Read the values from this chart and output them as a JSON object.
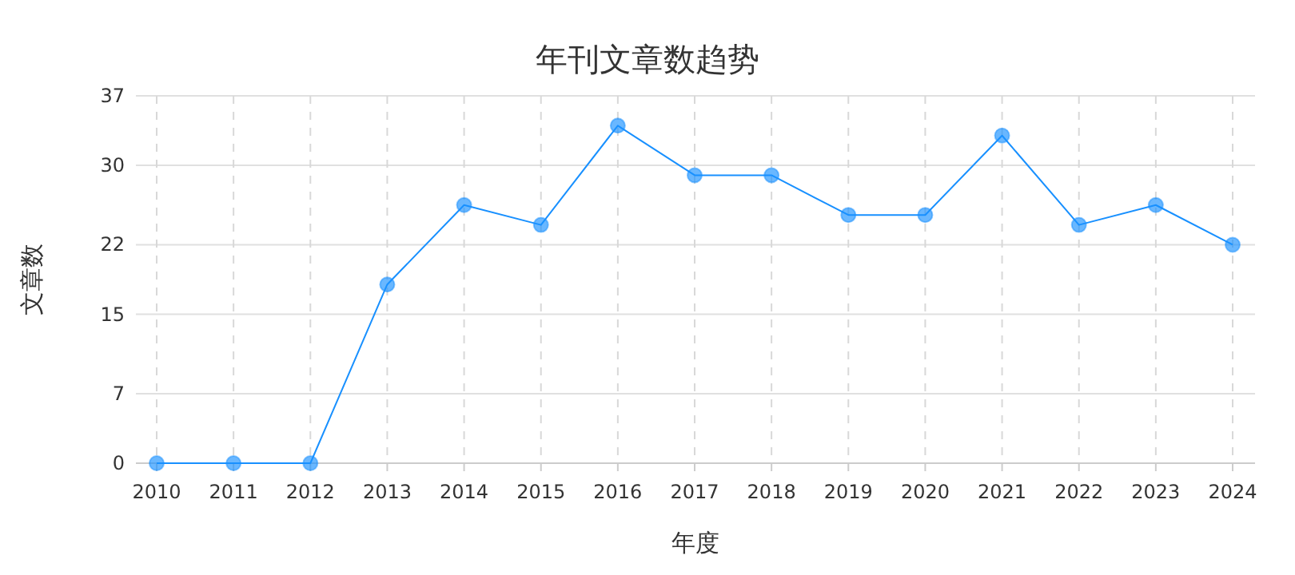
{
  "chart_data": {
    "type": "line",
    "title": "年刊文章数趋势",
    "xlabel": "年度",
    "ylabel": "文章数",
    "categories": [
      "2010",
      "2011",
      "2012",
      "2013",
      "2014",
      "2015",
      "2016",
      "2017",
      "2018",
      "2019",
      "2020",
      "2021",
      "2022",
      "2023",
      "2024"
    ],
    "series": [
      {
        "color": "#1890ff",
        "values": [
          0,
          0,
          0,
          18,
          26,
          24,
          34,
          29,
          29,
          25,
          25,
          33,
          24,
          26,
          22
        ]
      }
    ],
    "ylim": [
      0,
      37
    ],
    "yticks": [
      0,
      7,
      15,
      22,
      30,
      37
    ],
    "grid": true,
    "marker": "circle",
    "line_style": "solid"
  }
}
